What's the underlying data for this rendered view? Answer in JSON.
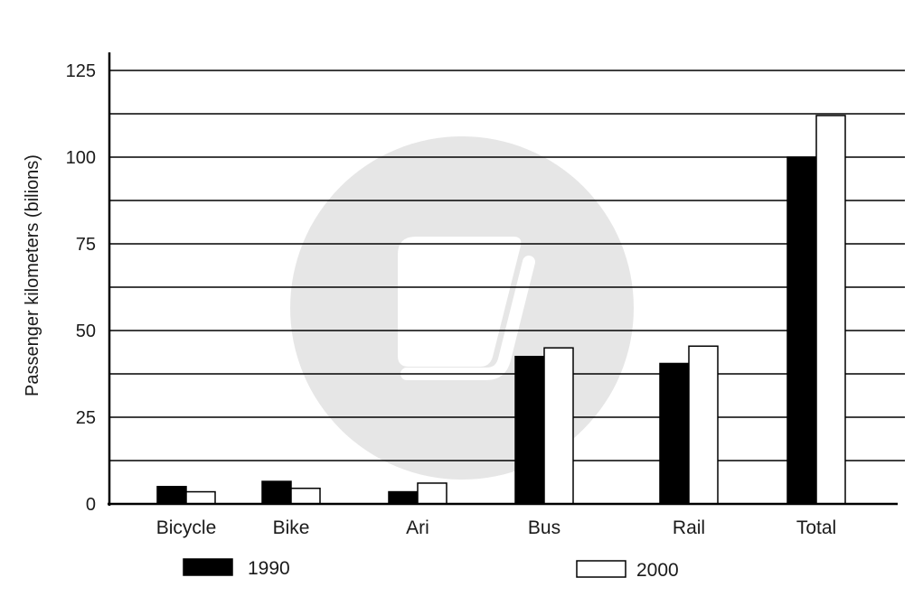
{
  "chart_data": {
    "type": "bar",
    "title": "",
    "xlabel": "",
    "ylabel": "Passenger kilometers (bilions)",
    "ylim": [
      0,
      125
    ],
    "yticks": [
      0,
      25,
      50,
      75,
      100,
      125
    ],
    "grid": true,
    "legend_position": "bottom",
    "categories": [
      "Bicycle",
      "Bike",
      "Ari",
      "Bus",
      "Rail",
      "Total"
    ],
    "series": [
      {
        "name": "1990",
        "color": "#000000",
        "values": [
          5,
          6.5,
          3.5,
          42.5,
          40.5,
          100
        ]
      },
      {
        "name": "2000",
        "color": "#ffffff",
        "values": [
          3.5,
          4.5,
          6,
          45,
          45.5,
          112
        ]
      }
    ]
  },
  "watermark": {
    "icon": "book-watermark-icon",
    "color": "#e6e6e6"
  }
}
